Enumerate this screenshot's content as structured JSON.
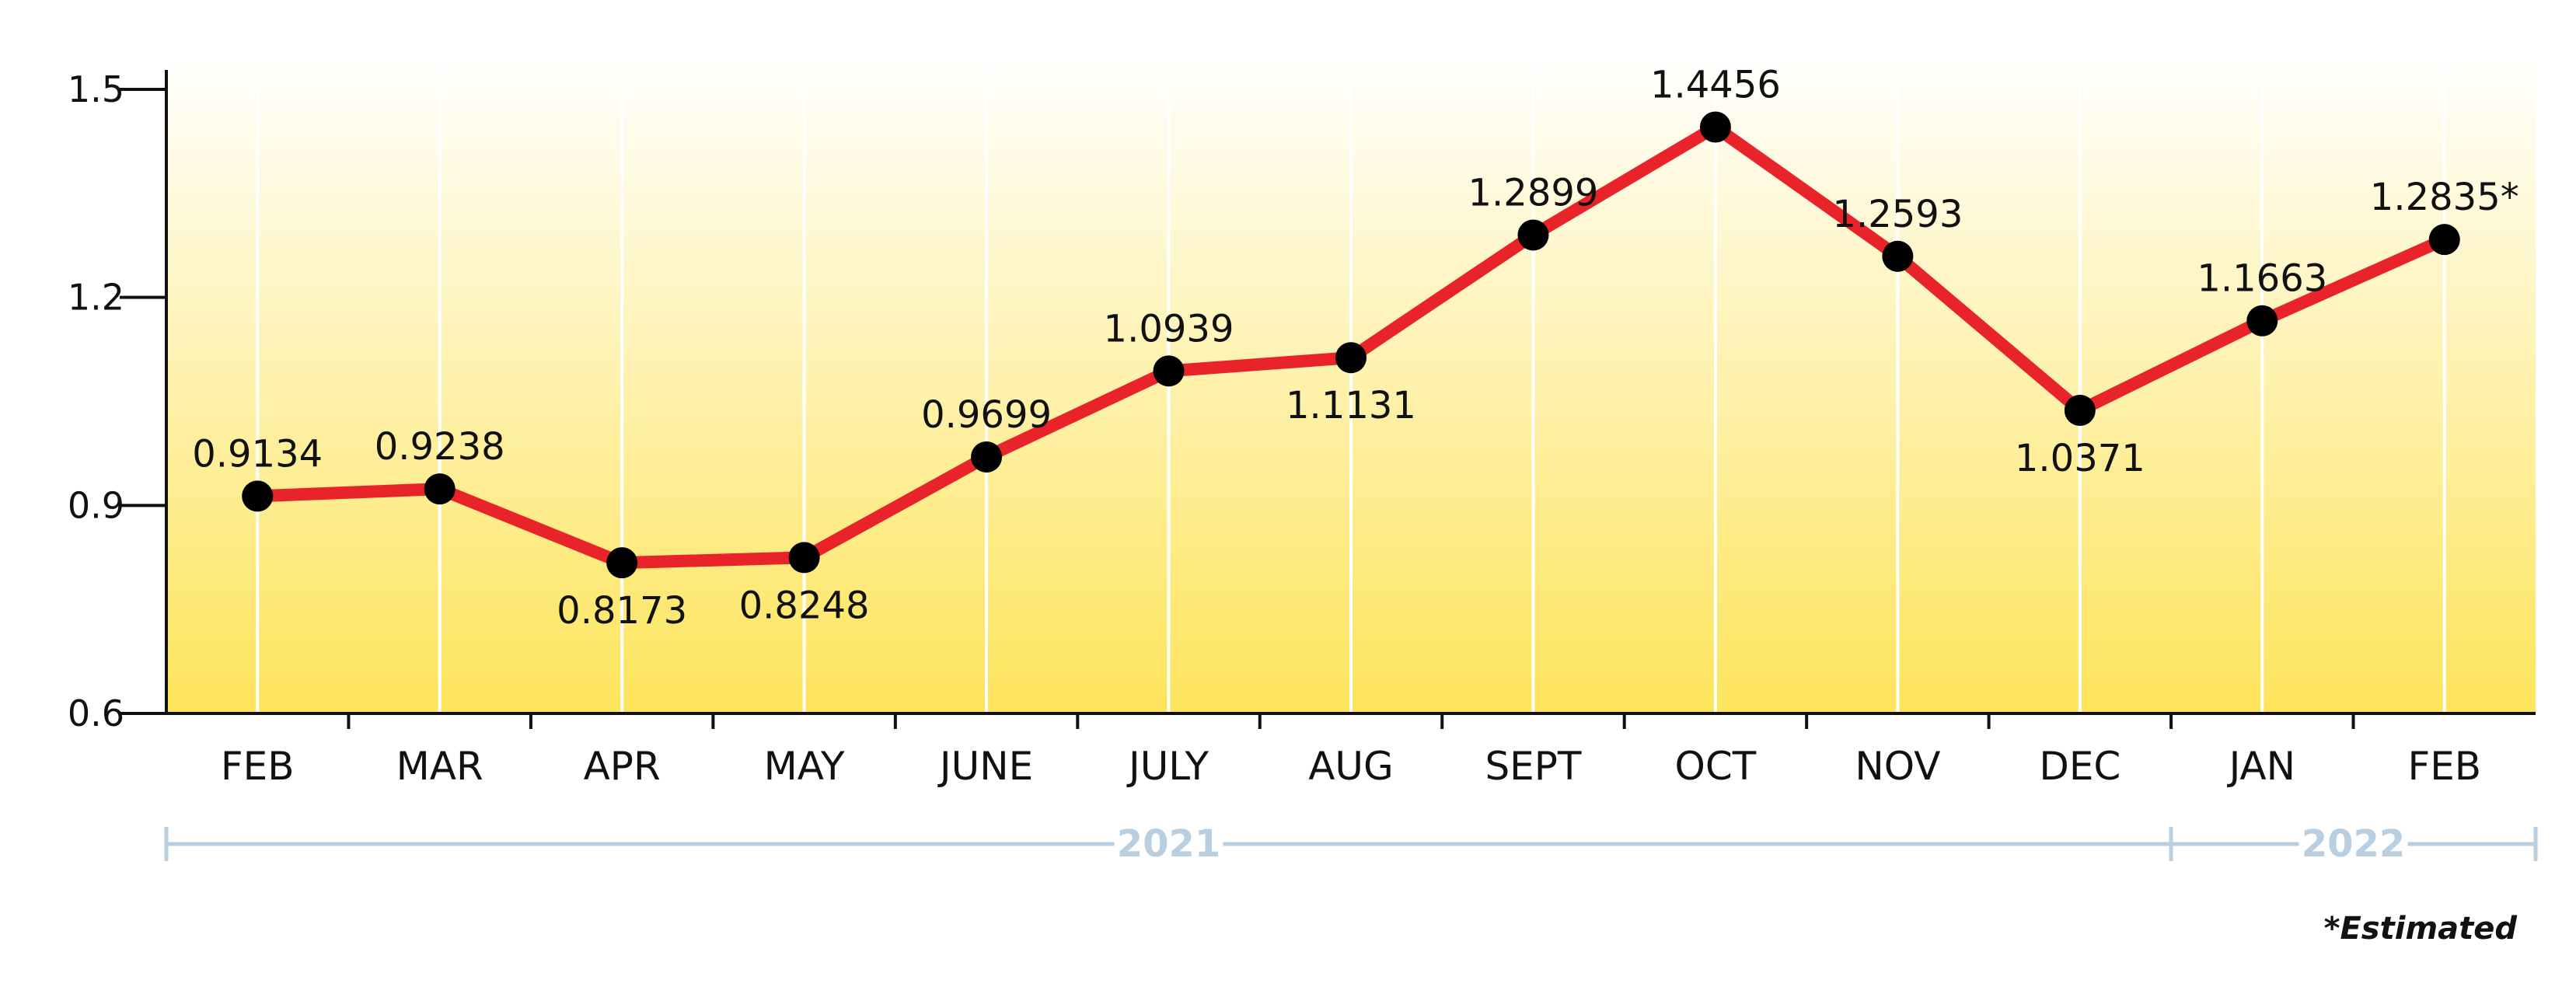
{
  "chart_data": {
    "type": "line",
    "categories": [
      "FEB",
      "MAR",
      "APR",
      "MAY",
      "JUNE",
      "JULY",
      "AUG",
      "SEPT",
      "OCT",
      "NOV",
      "DEC",
      "JAN",
      "FEB"
    ],
    "values": [
      0.9134,
      0.9238,
      0.8173,
      0.8248,
      0.9699,
      1.0939,
      1.1131,
      1.2899,
      1.4456,
      1.2593,
      1.0371,
      1.1663,
      1.2835
    ],
    "data_labels": [
      "0.9134",
      "0.9238",
      "0.8173",
      "0.8248",
      "0.9699",
      "1.0939",
      "1.1131",
      "1.2899",
      "1.4456",
      "1.2593",
      "1.0371",
      "1.1663",
      "1.2835*"
    ],
    "label_position": [
      "above",
      "above",
      "below",
      "below",
      "above",
      "above",
      "below",
      "above",
      "above",
      "above",
      "below",
      "above",
      "above"
    ],
    "yticks": [
      "0.6",
      "0.9",
      "1.2",
      "1.5"
    ],
    "ylim": [
      0.6,
      1.5
    ],
    "year_groups": [
      {
        "label": "2021",
        "start_index": 0,
        "end_index": 10
      },
      {
        "label": "2022",
        "start_index": 11,
        "end_index": 12
      }
    ],
    "footnote": "*Estimated",
    "grid": "vertical",
    "colors": {
      "line": "#e8242a",
      "marker": "#000000",
      "background_top": "#ffffff",
      "background_bottom": "#fde45a",
      "year_bracket": "#b9cfe0"
    }
  }
}
